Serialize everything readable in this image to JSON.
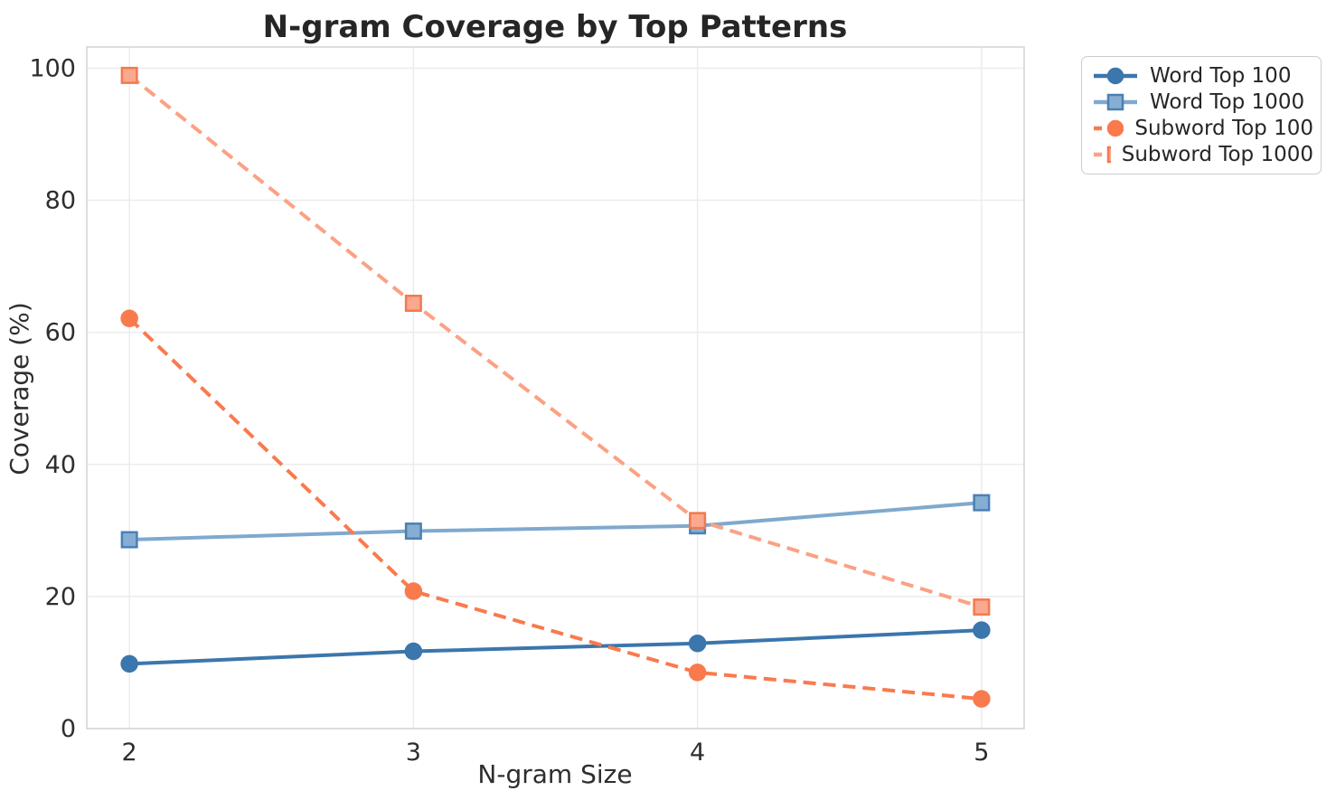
{
  "chart_data": {
    "type": "line",
    "title": "N-gram Coverage by Top Patterns",
    "xlabel": "N-gram Size",
    "ylabel": "Coverage (%)",
    "x": [
      2,
      3,
      4,
      5
    ],
    "x_ticks": [
      2,
      3,
      4,
      5
    ],
    "y_ticks": [
      0,
      20,
      40,
      60,
      80,
      100
    ],
    "xlim": [
      1.85,
      5.15
    ],
    "ylim": [
      0,
      103.2
    ],
    "grid": true,
    "legend_position": "outside-top-right",
    "series": [
      {
        "name": "Word Top 100",
        "values": [
          9.8,
          11.7,
          12.9,
          14.9
        ],
        "color": "#3B76AC",
        "line_style": "solid",
        "marker": "circle",
        "marker_fill": "#3B76AC",
        "marker_edge": "#3B76AC"
      },
      {
        "name": "Word Top 1000",
        "values": [
          28.6,
          29.9,
          30.7,
          34.2
        ],
        "color": "#7FA9CE",
        "line_style": "solid",
        "marker": "square",
        "marker_fill": "#86AED2",
        "marker_edge": "#4A80B5"
      },
      {
        "name": "Subword Top 100",
        "values": [
          62.1,
          20.8,
          8.5,
          4.5
        ],
        "color": "#F97A4D",
        "line_style": "dashed",
        "marker": "circle",
        "marker_fill": "#F97A4D",
        "marker_edge": "#F97A4D"
      },
      {
        "name": "Subword Top 1000",
        "values": [
          98.9,
          64.4,
          31.5,
          18.4
        ],
        "color": "#FBA184",
        "line_style": "dashed",
        "marker": "square",
        "marker_fill": "#FAA98F",
        "marker_edge": "#F4794E"
      }
    ]
  },
  "axes_style": {
    "grid_color": "#ececec",
    "spine_color": "#d6d6d6",
    "tick_color": "#2e2e2e",
    "title_color": "#262626",
    "background": "#ffffff"
  }
}
